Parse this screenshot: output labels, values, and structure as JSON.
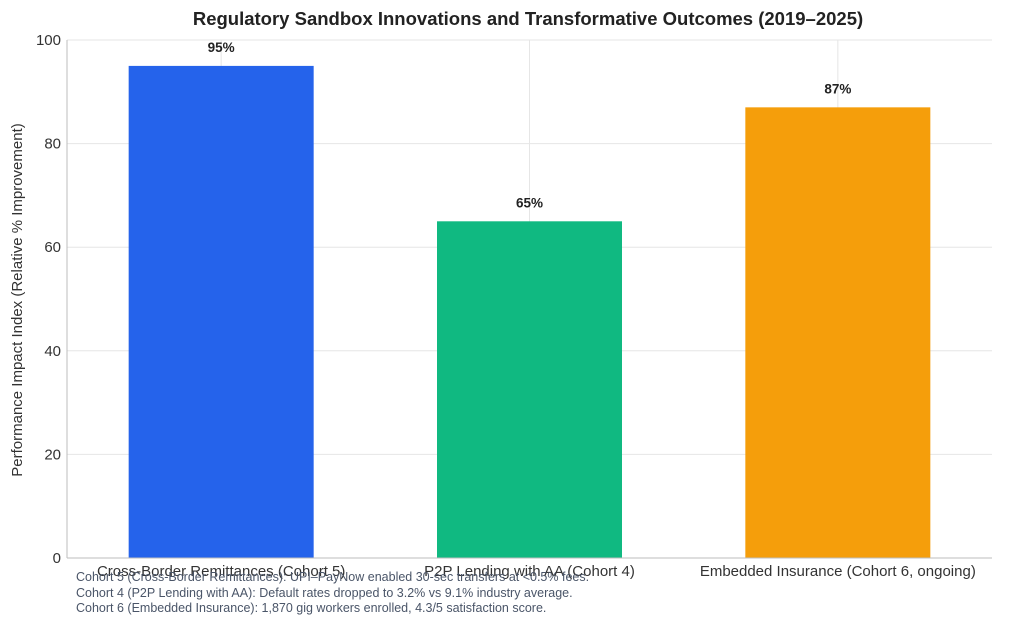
{
  "chart_data": {
    "type": "bar",
    "title": "Regulatory Sandbox Innovations and Transformative Outcomes (2019–2025)",
    "xlabel": "",
    "ylabel": "Performance Impact Index (Relative % Improvement)",
    "ylim": [
      0,
      100
    ],
    "yticks": [
      0,
      20,
      40,
      60,
      80,
      100
    ],
    "grid": true,
    "categories": [
      "Cross-Border Remittances (Cohort 5)",
      "P2P Lending with AA (Cohort 4)",
      "Embedded Insurance (Cohort 6, ongoing)"
    ],
    "values": [
      95,
      65,
      87
    ],
    "data_labels": [
      "95%",
      "65%",
      "87%"
    ],
    "colors": [
      "#2563eb",
      "#10b981",
      "#f59e0b"
    ]
  },
  "footnotes": [
    "Cohort 5 (Cross-Border Remittances): UPI–PayNow enabled 30-sec transfers at <0.5% fees.",
    "Cohort 4 (P2P Lending with AA): Default rates dropped to 3.2% vs 9.1% industry average.",
    "Cohort 6 (Embedded Insurance): 1,870 gig workers enrolled, 4.3/5 satisfaction score."
  ]
}
